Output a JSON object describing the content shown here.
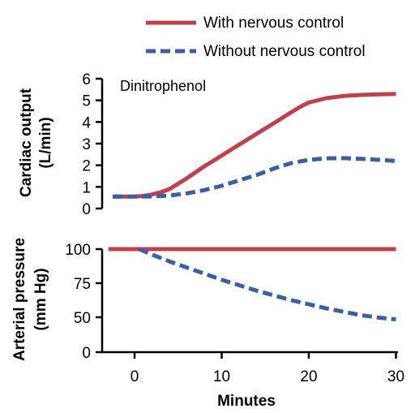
{
  "legend": {
    "with_label": "With nervous control",
    "without_label": "Without nervous control"
  },
  "chart_data": [
    {
      "type": "line",
      "annotation": "Dinitrophenol",
      "ylabel_line1": "Cardiac output",
      "ylabel_line2": "(L/min)",
      "xlim": [
        -3,
        30
      ],
      "ylim": [
        0,
        6
      ],
      "yticks": [
        "0",
        "1",
        "2",
        "3",
        "4",
        "5",
        "6"
      ],
      "series": [
        {
          "name": "With nervous control",
          "color": "#c0404c",
          "style": "solid",
          "x": [
            -2.5,
            0,
            1,
            2,
            3,
            4,
            6,
            8,
            10,
            12,
            14,
            16,
            18,
            19,
            20,
            22,
            24,
            26,
            28,
            30
          ],
          "y": [
            0.55,
            0.55,
            0.58,
            0.65,
            0.75,
            0.9,
            1.4,
            1.95,
            2.45,
            2.95,
            3.45,
            3.95,
            4.45,
            4.7,
            4.9,
            5.1,
            5.2,
            5.25,
            5.28,
            5.3
          ]
        },
        {
          "name": "Without nervous control",
          "color": "#3a5fa5",
          "style": "dashed",
          "x": [
            -2.5,
            0,
            2,
            4,
            6,
            8,
            10,
            12,
            14,
            16,
            18,
            20,
            22,
            24,
            26,
            28,
            30
          ],
          "y": [
            0.55,
            0.55,
            0.56,
            0.6,
            0.7,
            0.85,
            1.05,
            1.3,
            1.55,
            1.85,
            2.1,
            2.25,
            2.32,
            2.33,
            2.3,
            2.25,
            2.2
          ]
        }
      ]
    },
    {
      "type": "line",
      "ylabel_line1": "Arterial pressure",
      "ylabel_line2": "(mm Hg)",
      "xlabel": "Minutes",
      "xlim": [
        -3,
        30
      ],
      "ylim": [
        0,
        100
      ],
      "xticks": [
        "0",
        "10",
        "20",
        "30"
      ],
      "yticks": [
        "0",
        "50",
        "75",
        "100"
      ],
      "series": [
        {
          "name": "With nervous control",
          "color": "#c0404c",
          "style": "solid",
          "x": [
            -3,
            30
          ],
          "y": [
            100,
            100
          ]
        },
        {
          "name": "Without nervous control",
          "color": "#3a5fa5",
          "style": "dashed",
          "x": [
            0.5,
            2,
            4,
            6,
            8,
            10,
            12,
            14,
            16,
            18,
            20,
            22,
            24,
            26,
            28,
            30
          ],
          "y": [
            100,
            96,
            91,
            86.5,
            82,
            77.5,
            73.5,
            69.5,
            66,
            62.5,
            59.5,
            56.5,
            54,
            51.5,
            49.5,
            47
          ]
        }
      ]
    }
  ]
}
